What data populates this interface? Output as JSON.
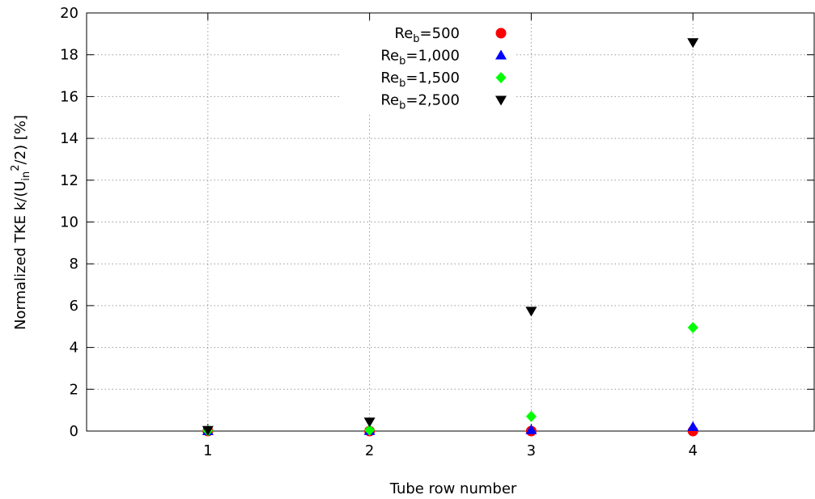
{
  "chart_data": {
    "type": "scatter",
    "x": [
      1,
      2,
      3,
      4
    ],
    "xlabel": "Tube row number",
    "ylabel": {
      "main": "Normalized TKE k/(U",
      "sub": "in",
      "sup": "2",
      "tail": "/2) [%]"
    },
    "xlim": [
      0.25,
      4.75
    ],
    "ylim": [
      0,
      20
    ],
    "xticks": [
      1,
      2,
      3,
      4
    ],
    "yticks": [
      0,
      2,
      4,
      6,
      8,
      10,
      12,
      14,
      16,
      18,
      20
    ],
    "grid": true,
    "legend_position": "top-center",
    "series": [
      {
        "name": {
          "prefix": "Re",
          "sub": "b",
          "suffix": "=500"
        },
        "values": [
          0.0,
          0.0,
          0.0,
          0.0
        ],
        "marker": "circle",
        "color": "#ff0000"
      },
      {
        "name": {
          "prefix": "Re",
          "sub": "b",
          "suffix": "=1,000"
        },
        "values": [
          0.0,
          0.01,
          0.05,
          0.2
        ],
        "marker": "triangle-up",
        "color": "#0000ff"
      },
      {
        "name": {
          "prefix": "Re",
          "sub": "b",
          "suffix": "=1,500"
        },
        "values": [
          0.02,
          0.05,
          0.7,
          4.95
        ],
        "marker": "diamond",
        "color": "#00ff00"
      },
      {
        "name": {
          "prefix": "Re",
          "sub": "b",
          "suffix": "=2,500"
        },
        "values": [
          0.05,
          0.45,
          5.75,
          18.6
        ],
        "marker": "triangle-down",
        "color": "#000000"
      }
    ]
  }
}
